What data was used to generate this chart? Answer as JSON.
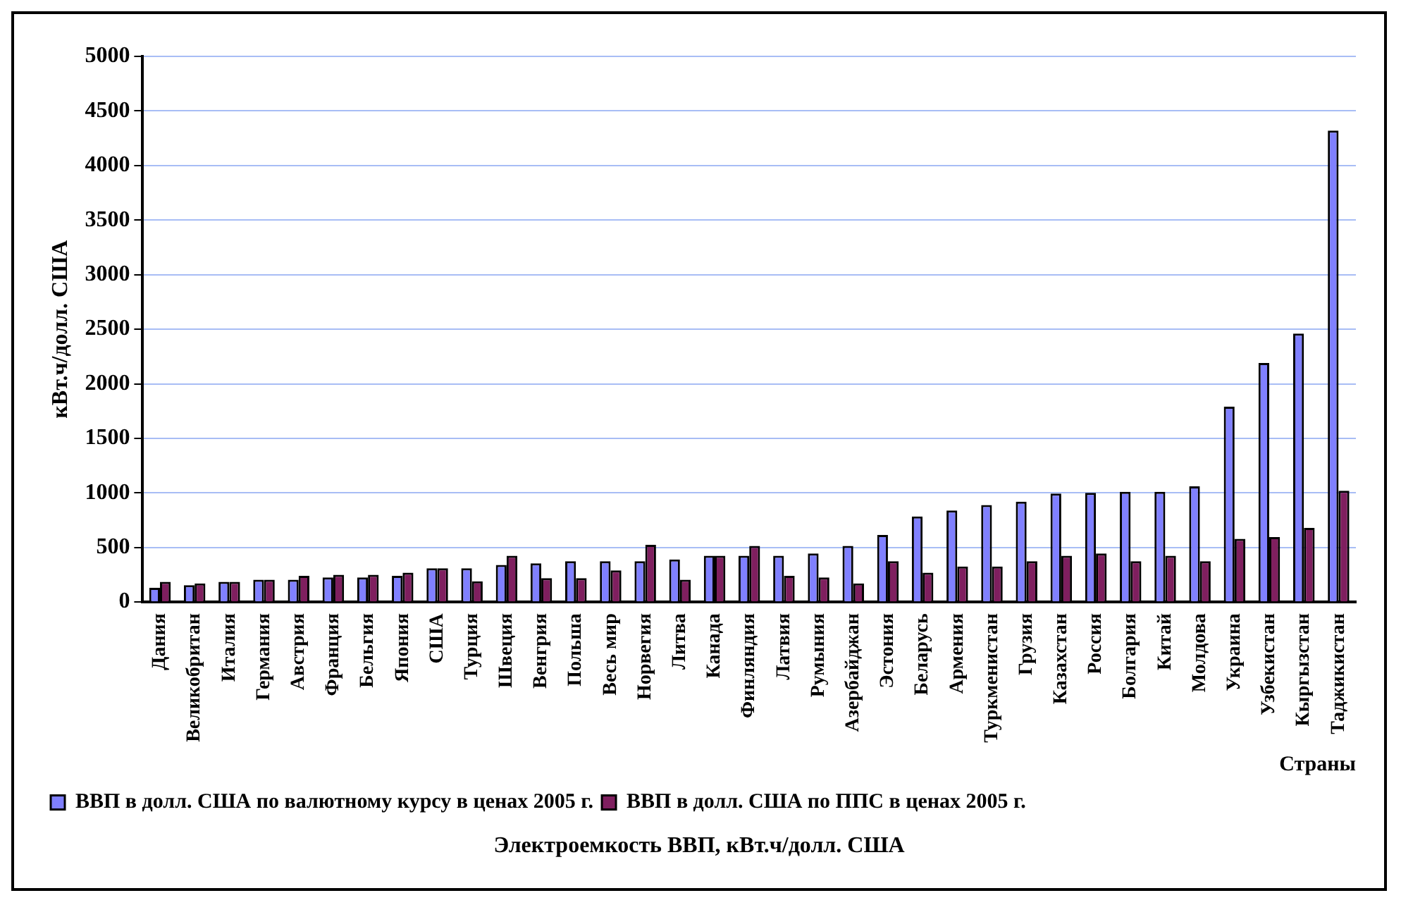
{
  "chart_data": {
    "type": "bar",
    "title": "Электроемкость ВВП, кВт.ч/долл. США",
    "xlabel": "Страны",
    "ylabel": "кВт.ч/долл. США",
    "categories": [
      "Дания",
      "Великобритан",
      "Италия",
      "Германия",
      "Австрия",
      "Франция",
      "Бельгия",
      "Япония",
      "США",
      "Турция",
      "Швеция",
      "Венгрия",
      "Польша",
      "Весь мир",
      "Норвегия",
      "Литва",
      "Канада",
      "Финляндия",
      "Латвия",
      "Румыния",
      "Азербайджан",
      "Эстония",
      "Беларусь",
      "Армения",
      "Туркменистан",
      "Грузия",
      "Казахстан",
      "Россия",
      "Болгария",
      "Китай",
      "Молдова",
      "Украина",
      "Узбекистан",
      "Кыргызстан",
      "Таджикистан"
    ],
    "series": [
      {
        "name": "ВВП в долл. США по валютному курсу в ценах 2005 г.",
        "color": "#8080ff",
        "values": [
          130,
          155,
          185,
          205,
          205,
          225,
          225,
          240,
          310,
          310,
          340,
          355,
          375,
          375,
          375,
          390,
          425,
          425,
          425,
          445,
          515,
          615,
          785,
          840,
          890,
          920,
          995,
          1000,
          1010,
          1010,
          1060,
          1790,
          2190,
          2460,
          4320
        ]
      },
      {
        "name": "ВВП в долл. США по ППС в ценах 2005 г.",
        "color": "#7f1f5f",
        "values": [
          185,
          170,
          185,
          205,
          240,
          250,
          250,
          270,
          310,
          190,
          425,
          220,
          220,
          290,
          525,
          205,
          425,
          515,
          240,
          225,
          170,
          375,
          270,
          325,
          325,
          375,
          425,
          445,
          375,
          425,
          375,
          580,
          595,
          680,
          1020
        ]
      }
    ],
    "ylim": [
      0,
      5000
    ],
    "yticks": [
      0,
      500,
      1000,
      1500,
      2000,
      2500,
      3000,
      3500,
      4000,
      4500,
      5000
    ],
    "grid": "y",
    "legend": "bottom"
  }
}
